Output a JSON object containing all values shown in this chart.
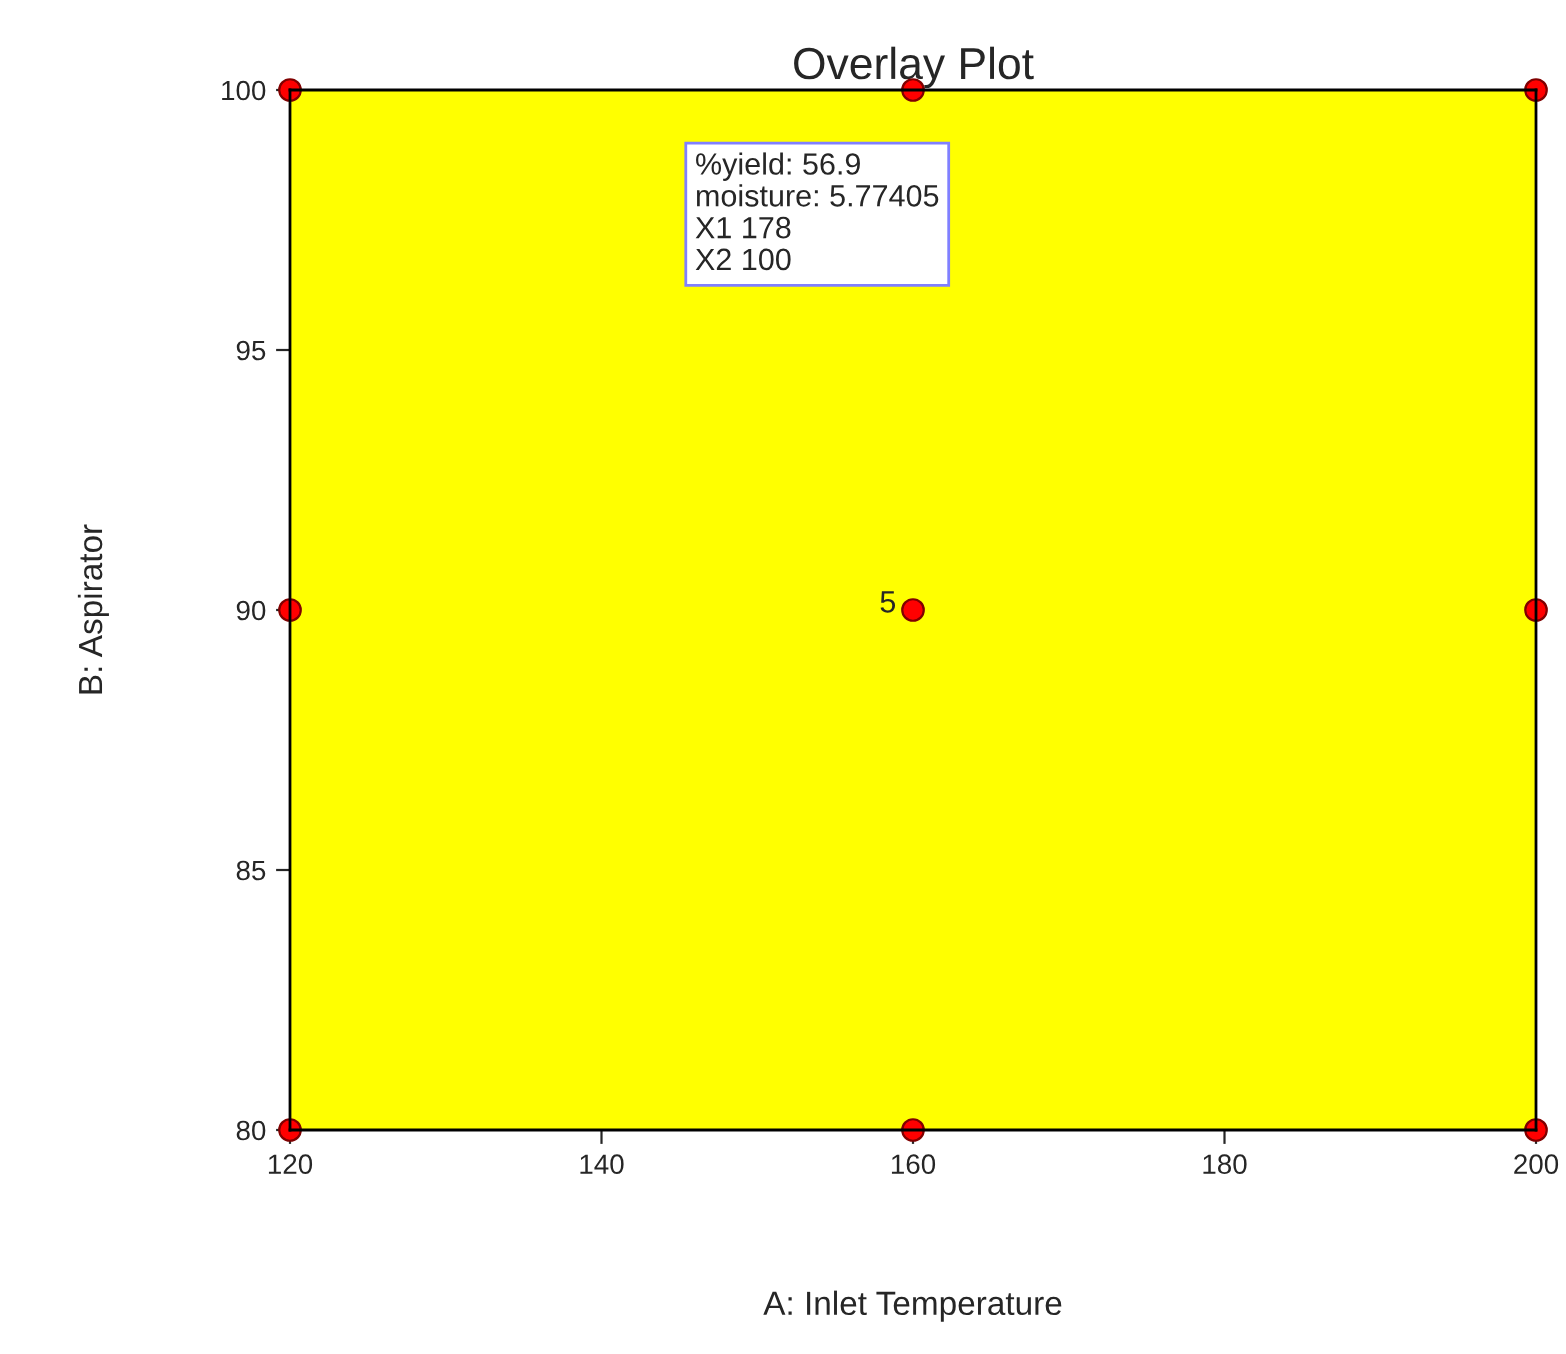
{
  "chart_data": {
    "type": "scatter",
    "title": "Overlay Plot",
    "xlabel": "A: Inlet Temperature",
    "ylabel": "B: Aspirator",
    "xlim": [
      120,
      200
    ],
    "xticks": [
      120,
      140,
      160,
      180,
      200
    ],
    "ylim": [
      80,
      100
    ],
    "yticks": [
      80,
      85,
      90,
      95,
      100
    ],
    "marker": "circle",
    "bands": [
      {
        "axis": "y",
        "from": 80,
        "to": 100,
        "color": "#ffff00"
      }
    ],
    "series": [
      {
        "color": "#ff0000",
        "x": [
          120,
          160,
          200,
          120,
          160,
          200,
          120,
          160,
          200
        ],
        "values": [
          100,
          100,
          100,
          90,
          90,
          90,
          80,
          80,
          80
        ]
      }
    ],
    "annotations": [
      {
        "text": "5",
        "x": 160,
        "y": 90
      },
      "%yield: 56.9\nmoisture: 5.77405\nX1 178\nX2 100"
    ]
  }
}
